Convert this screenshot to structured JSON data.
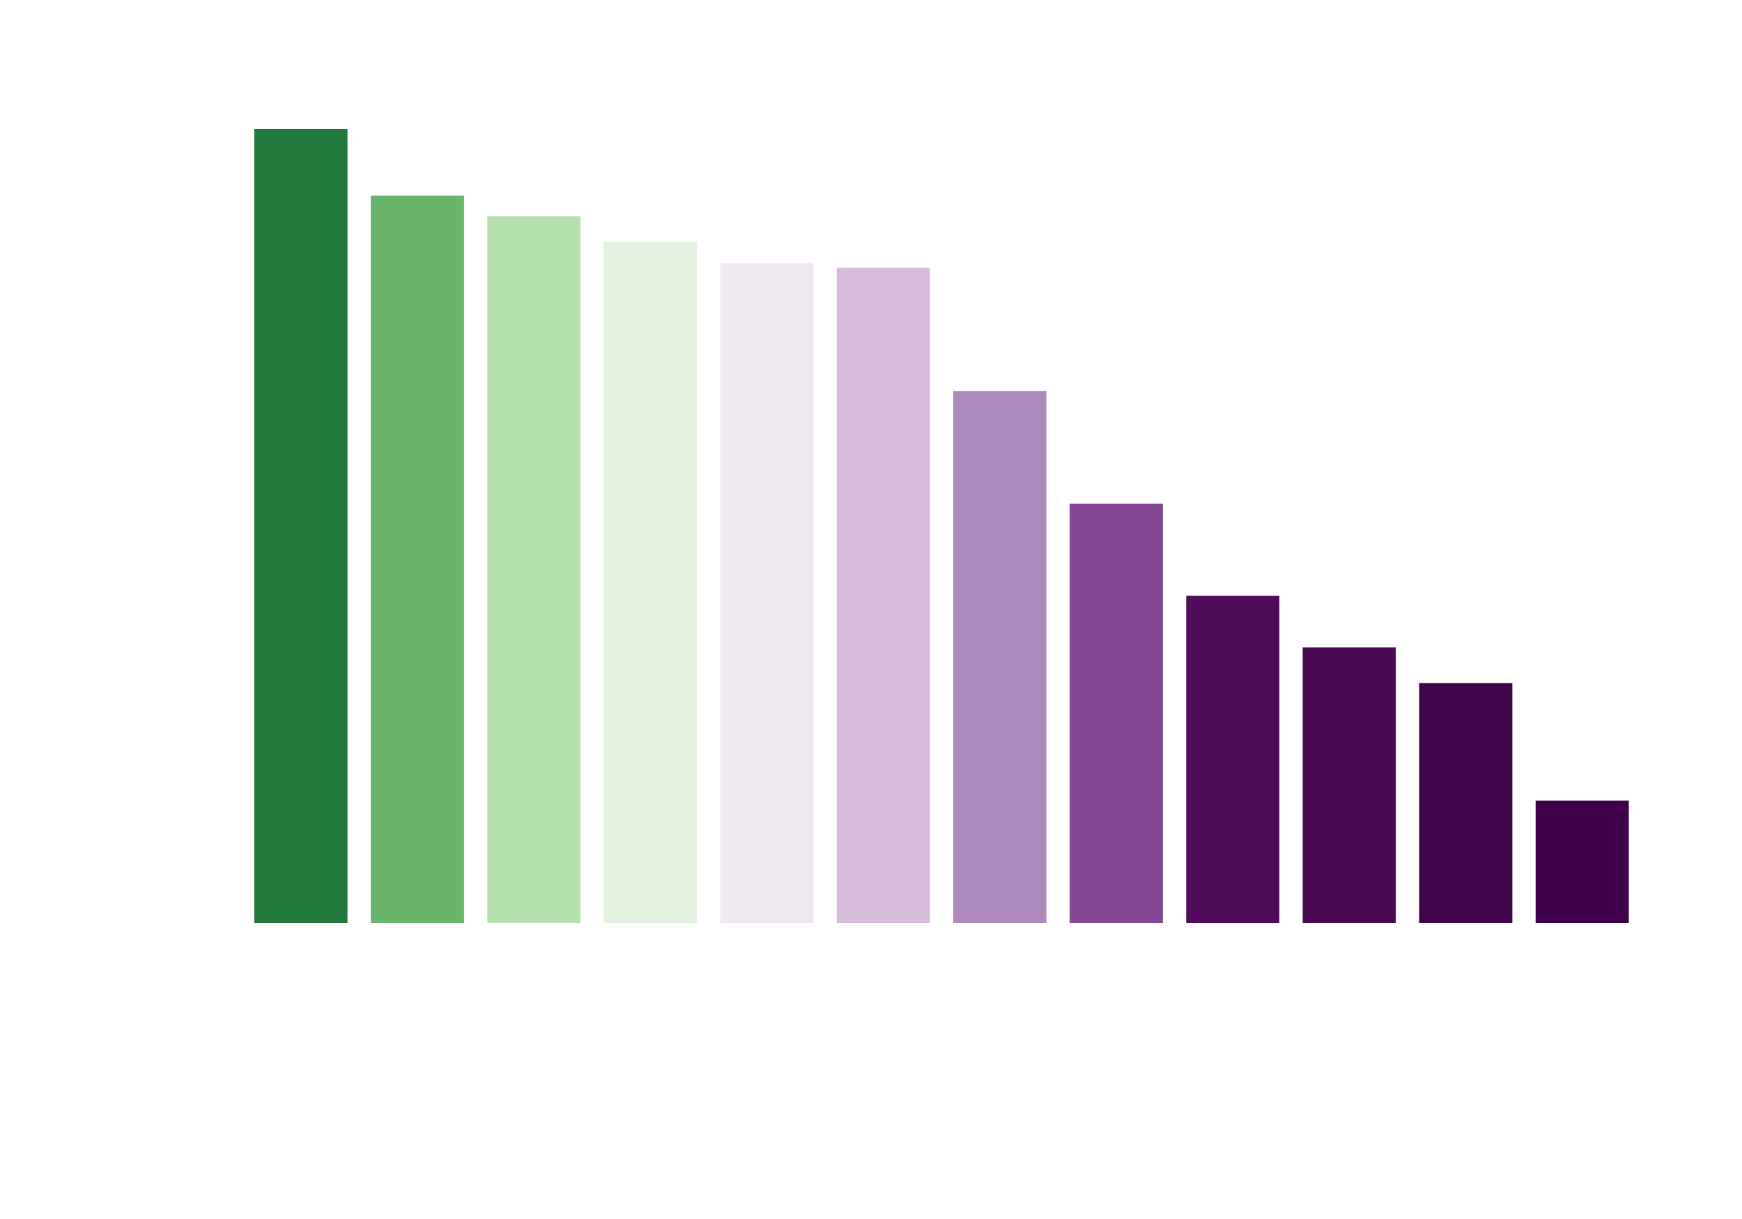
{
  "chart_data": {
    "type": "bar",
    "title": "",
    "xlabel": "",
    "ylabel": "",
    "axes_visible": false,
    "grid": false,
    "categories": [
      "",
      "",
      "",
      "",
      "",
      "",
      "",
      "",
      "",
      "",
      "",
      ""
    ],
    "values": [
      100,
      91.6,
      89,
      85.8,
      83.1,
      82.5,
      67,
      52.8,
      41.2,
      34.7,
      30.2,
      15.4
    ],
    "ylim": [
      0,
      100
    ],
    "colors": [
      "#217a3b",
      "#69b56c",
      "#b3e0ab",
      "#e2f2df",
      "#f0e8f0",
      "#d8bcdb",
      "#ad89bd",
      "#834692",
      "#4f0c59",
      "#4a0853",
      "#40044a",
      "#40004b"
    ]
  }
}
